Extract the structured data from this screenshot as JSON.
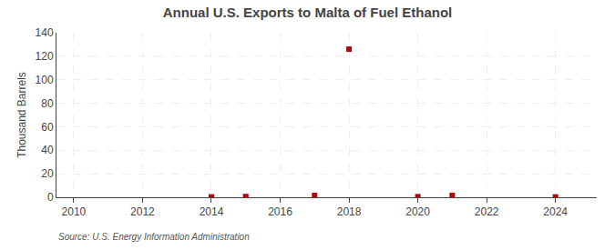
{
  "chart_data": {
    "type": "scatter",
    "title": "Annual U.S. Exports to Malta of Fuel Ethanol",
    "ylabel": "Thousand Barrels",
    "annotations": [
      "Source: U.S. Energy Information Administration"
    ],
    "x": [
      2014,
      2015,
      2017,
      2018,
      2020,
      2021,
      2024
    ],
    "values": [
      0.3,
      0.6,
      1.5,
      126.0,
      0.5,
      1.5,
      0.3
    ],
    "color": "#bb0000",
    "marker": "square",
    "xlim": [
      2009.5,
      2025.2
    ],
    "xticks": [
      2010,
      2012,
      2014,
      2016,
      2018,
      2020,
      2022,
      2024
    ],
    "ylim": [
      0,
      140
    ],
    "yticks": [
      0,
      20,
      40,
      60,
      80,
      100,
      120,
      140
    ],
    "grid": true
  }
}
